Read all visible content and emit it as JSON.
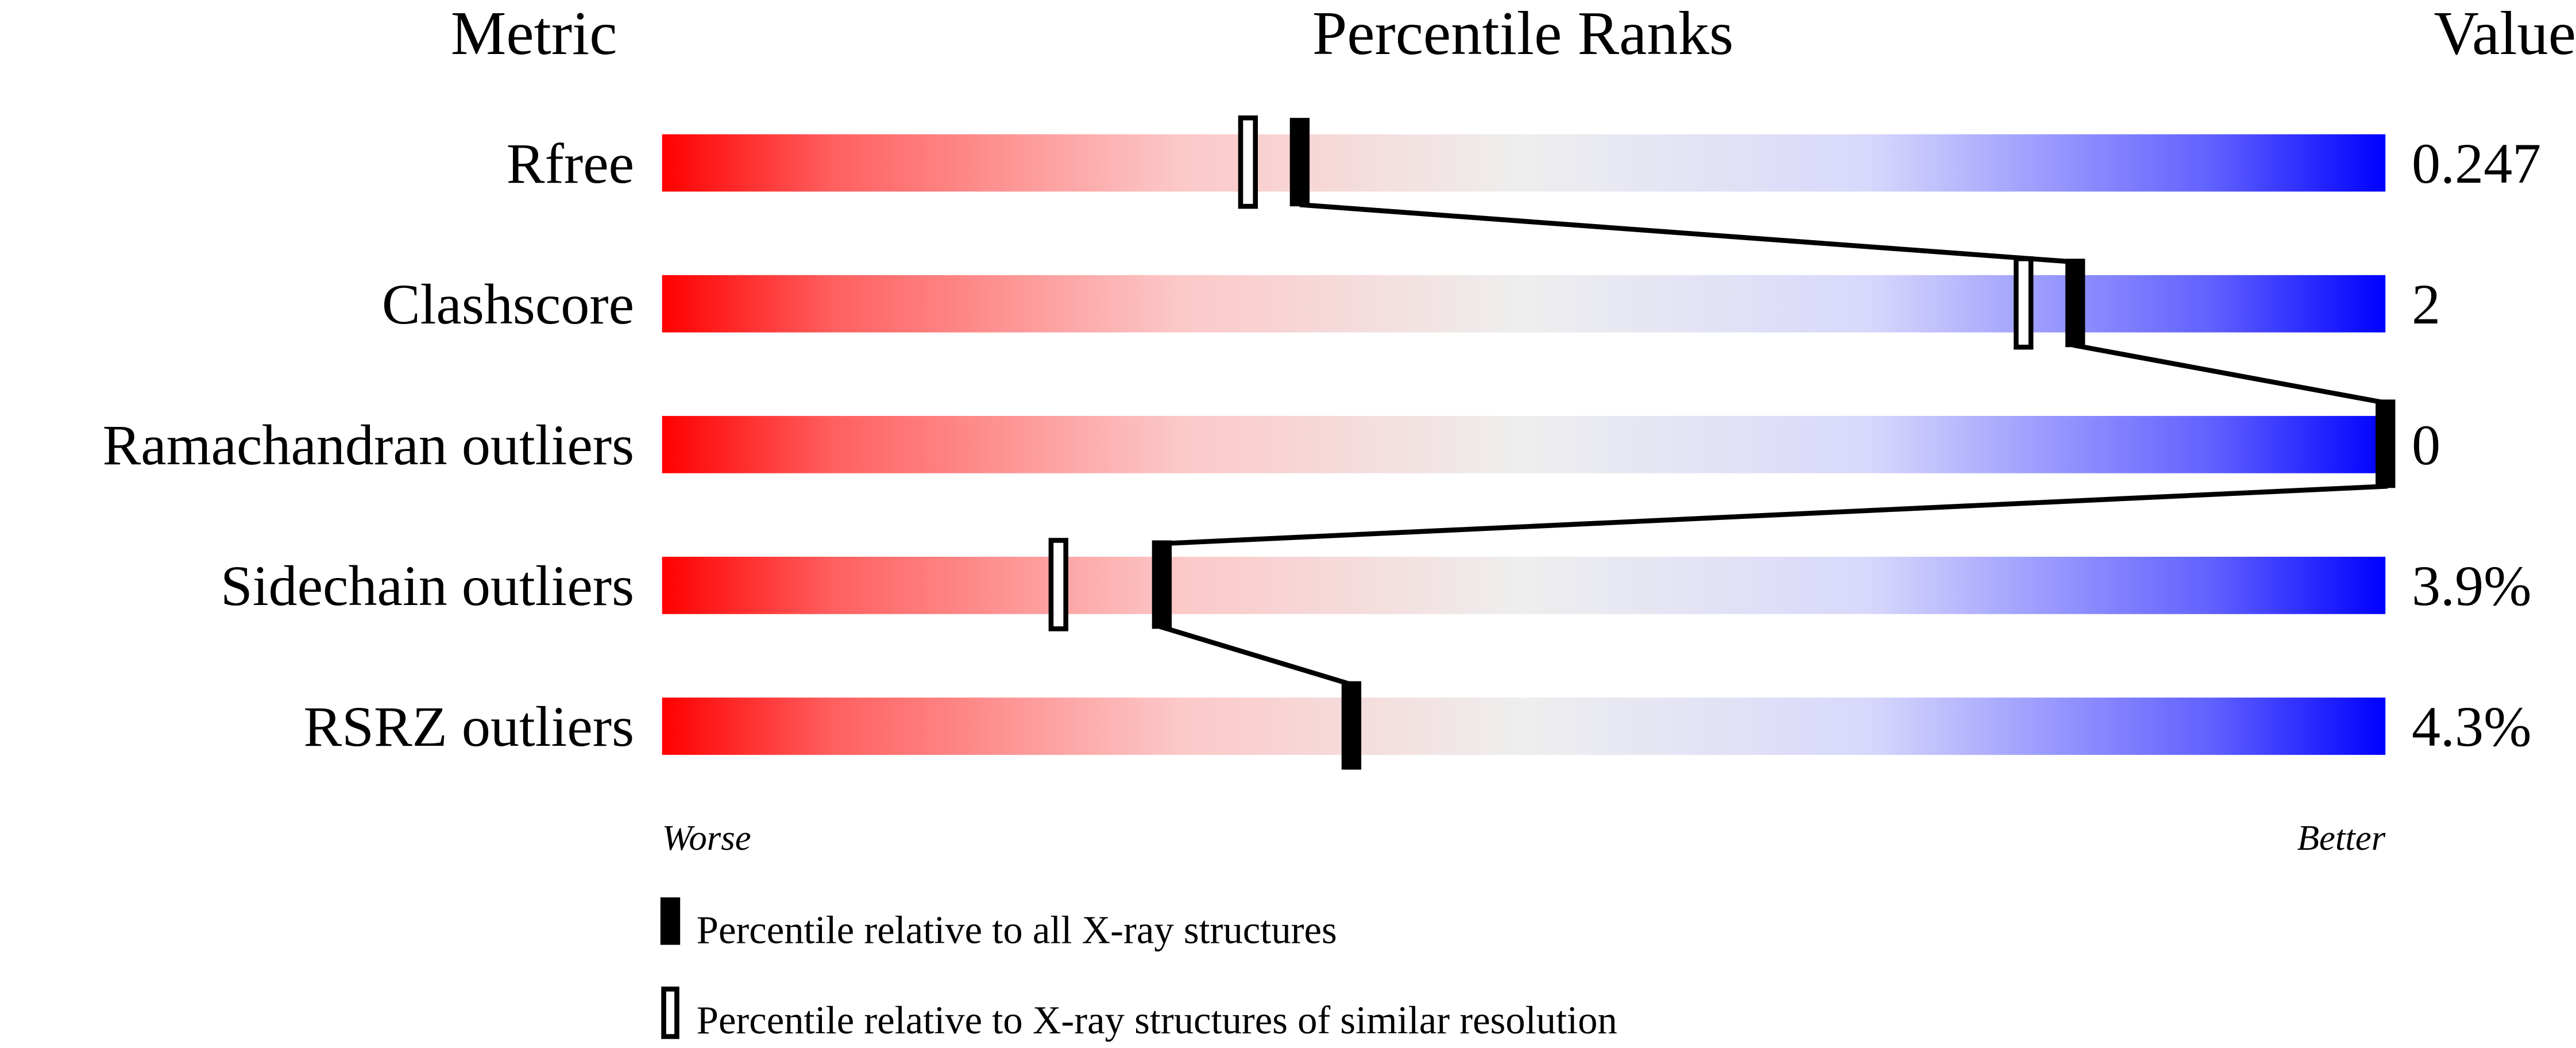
{
  "chart_data": {
    "type": "percentile-slider",
    "headers": {
      "metric": "Metric",
      "ranks": "Percentile Ranks",
      "value": "Value"
    },
    "xlim": [
      0,
      100
    ],
    "axis_labels": {
      "left": "Worse",
      "right": "Better"
    },
    "rows": [
      {
        "metric": "Rfree",
        "value": "0.247",
        "percentile_all": 37,
        "percentile_similar": 34
      },
      {
        "metric": "Clashscore",
        "value": "2",
        "percentile_all": 82,
        "percentile_similar": 79
      },
      {
        "metric": "Ramachandran outliers",
        "value": "0",
        "percentile_all": 100,
        "percentile_similar": null
      },
      {
        "metric": "Sidechain outliers",
        "value": "3.9%",
        "percentile_all": 29,
        "percentile_similar": 23
      },
      {
        "metric": "RSRZ outliers",
        "value": "4.3%",
        "percentile_all": 40,
        "percentile_similar": null
      }
    ],
    "legend": {
      "all": "Percentile relative to all X-ray structures",
      "similar": "Percentile relative to X-ray structures of similar resolution"
    },
    "colors": {
      "worse": "#ff0000",
      "middle": "#eeeeee",
      "better": "#0000ff"
    }
  }
}
